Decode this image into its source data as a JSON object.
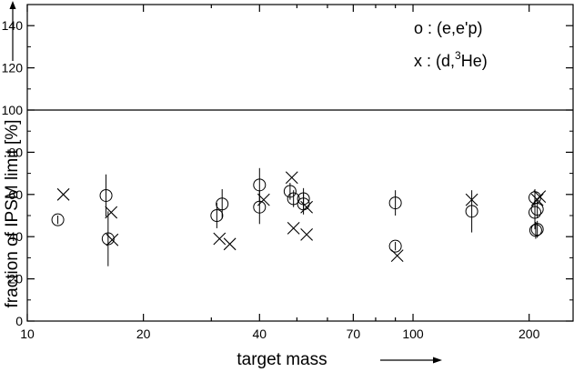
{
  "chart_data": {
    "type": "scatter",
    "title": "",
    "xlabel": "target mass",
    "ylabel": "fraction of IPSM limit [%]",
    "xscale": "log",
    "xlim": [
      10,
      260
    ],
    "ylim": [
      0,
      150
    ],
    "x_ticks": [
      10,
      20,
      40,
      70,
      100,
      200
    ],
    "y_ticks": [
      0,
      20,
      40,
      60,
      80,
      100,
      120,
      140
    ],
    "grid": false,
    "reference_line": {
      "y": 100
    },
    "legend": {
      "placement": "top-right",
      "entries": [
        {
          "marker": "o",
          "text": "o : (e,e'p)"
        },
        {
          "marker": "x",
          "text_prefix": "x : (d,",
          "superscript": "3",
          "text_suffix": "He)"
        }
      ]
    },
    "series": [
      {
        "marker": "o",
        "reaction": "(e,e'p)",
        "points": [
          {
            "x": 12,
            "y": 48,
            "err": 2
          },
          {
            "x": 16,
            "y": 59.5,
            "err": 10
          },
          {
            "x": 16.2,
            "y": 39,
            "err": 13
          },
          {
            "x": 31,
            "y": 50,
            "err": 6
          },
          {
            "x": 32,
            "y": 55.5,
            "err": 7
          },
          {
            "x": 40,
            "y": 64.5,
            "err": 8
          },
          {
            "x": 40,
            "y": 54,
            "err": 8
          },
          {
            "x": 48,
            "y": 61.5,
            "err": 4
          },
          {
            "x": 49,
            "y": 58,
            "err": 4
          },
          {
            "x": 52,
            "y": 58,
            "err": 5
          },
          {
            "x": 52,
            "y": 55.5,
            "err": 5
          },
          {
            "x": 90,
            "y": 56,
            "err": 6
          },
          {
            "x": 90,
            "y": 35.5,
            "err": 2
          },
          {
            "x": 142,
            "y": 52,
            "err": 10
          },
          {
            "x": 207,
            "y": 58.5,
            "err": 4
          },
          {
            "x": 207,
            "y": 51.5,
            "err": 8
          },
          {
            "x": 208,
            "y": 43,
            "err": 4
          },
          {
            "x": 210,
            "y": 53,
            "err": 4
          },
          {
            "x": 210,
            "y": 43.5,
            "err": 4
          }
        ]
      },
      {
        "marker": "x",
        "reaction": "(d,3He)",
        "points": [
          {
            "x": 12.4,
            "y": 60
          },
          {
            "x": 16.5,
            "y": 51.5
          },
          {
            "x": 16.6,
            "y": 38.5
          },
          {
            "x": 31.5,
            "y": 39
          },
          {
            "x": 33.5,
            "y": 36.5
          },
          {
            "x": 41,
            "y": 57.5
          },
          {
            "x": 48.5,
            "y": 68
          },
          {
            "x": 49,
            "y": 44
          },
          {
            "x": 53,
            "y": 41
          },
          {
            "x": 53,
            "y": 54
          },
          {
            "x": 91,
            "y": 31
          },
          {
            "x": 142,
            "y": 57.5
          },
          {
            "x": 210,
            "y": 57.5
          },
          {
            "x": 213,
            "y": 59
          }
        ]
      }
    ]
  }
}
